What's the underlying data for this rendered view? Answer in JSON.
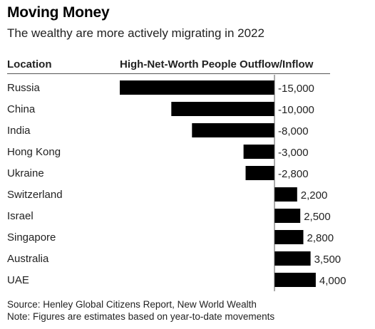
{
  "title": "Moving Money",
  "subtitle": "The wealthy are more actively migrating in 2022",
  "columns": {
    "location": "Location",
    "value": "High-Net-Worth People Outflow/Inflow"
  },
  "source": "Source: Henley Global Citizens Report, New World Wealth",
  "note": "Note: Figures are estimates based on year-to-date movements",
  "colors": {
    "bar": "#000000",
    "axis": "#555555",
    "text": "#222222"
  },
  "chart_data": {
    "type": "bar",
    "orientation": "horizontal",
    "categories": [
      "Russia",
      "China",
      "India",
      "Hong Kong",
      "Ukraine",
      "Switzerland",
      "Israel",
      "Singapore",
      "Australia",
      "UAE"
    ],
    "values": [
      -15000,
      -10000,
      -8000,
      -3000,
      -2800,
      2200,
      2500,
      2800,
      3500,
      4000
    ],
    "value_labels": [
      "-15,000",
      "-10,000",
      "-8,000",
      "-3,000",
      "-2,800",
      "2,200",
      "2,500",
      "2,800",
      "3,500",
      "4,000"
    ],
    "xlim": [
      -15000,
      4000
    ]
  }
}
